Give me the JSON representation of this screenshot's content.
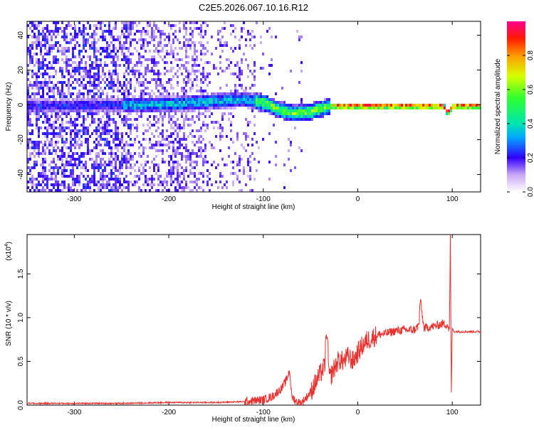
{
  "title": "C2E5.2026.067.10.16.R12",
  "chart_data": [
    {
      "type": "heatmap",
      "xlabel": "Height of straight line (km)",
      "ylabel": "Frequency (Hz)",
      "xlim": [
        -350,
        130
      ],
      "ylim": [
        -50,
        48
      ],
      "xticks": [
        -300,
        -200,
        -100,
        0,
        100
      ],
      "xtick_labels": [
        "-300",
        "-200",
        "-100",
        "0",
        "100"
      ],
      "yticks": [
        -40,
        -20,
        0,
        20,
        40
      ],
      "ytick_labels": [
        "-40",
        "-20",
        "0",
        "20",
        "40"
      ],
      "colorbar": {
        "label": "Normalized spectral amplitude",
        "range": [
          0,
          1
        ],
        "ticks": [
          0.0,
          0.2,
          0.4,
          0.6,
          0.8
        ],
        "tick_labels": [
          "0.0",
          "0.2",
          "0.4",
          "0.6",
          "0.8"
        ]
      },
      "ridge": [
        {
          "x": -350,
          "y": 0
        },
        {
          "x": -200,
          "y": 1
        },
        {
          "x": -150,
          "y": 3
        },
        {
          "x": -120,
          "y": 4
        },
        {
          "x": -100,
          "y": 2
        },
        {
          "x": -85,
          "y": -2
        },
        {
          "x": -70,
          "y": -4
        },
        {
          "x": -50,
          "y": -3
        },
        {
          "x": -30,
          "y": 0
        },
        {
          "x": 0,
          "y": 0
        },
        {
          "x": 90,
          "y": 0
        },
        {
          "x": 94,
          "y": -4
        },
        {
          "x": 100,
          "y": 0
        },
        {
          "x": 130,
          "y": 0
        }
      ]
    },
    {
      "type": "line",
      "xlabel": "Height of straight line (km)",
      "ylabel": "SNR (10 * v/v)",
      "yscale_label": "(x10",
      "yscale_exp": "4",
      "xlim": [
        -350,
        130
      ],
      "ylim": [
        0,
        1.95
      ],
      "xticks": [
        -300,
        -200,
        -100,
        0,
        100
      ],
      "xtick_labels": [
        "-300",
        "-200",
        "-100",
        "0",
        "100"
      ],
      "yticks": [
        0,
        0.5,
        1.0,
        1.5
      ],
      "ytick_labels": [
        "0.0",
        "0.5",
        "1.0",
        "1.5"
      ],
      "color": "#e8322f",
      "series": [
        {
          "x": [
            -350,
            -300,
            -250,
            -200,
            -150,
            -120,
            -100,
            -90,
            -80,
            -75,
            -72,
            -70,
            -65,
            -60,
            -55,
            -50,
            -45,
            -40,
            -35,
            -33,
            -30,
            -25,
            -20,
            -15,
            -10,
            -5,
            0,
            5,
            10,
            20,
            30,
            40,
            50,
            60,
            65,
            66,
            70,
            80,
            90,
            95,
            97,
            98,
            99,
            100,
            102,
            110,
            120,
            130
          ],
          "y": [
            0.02,
            0.02,
            0.02,
            0.03,
            0.03,
            0.04,
            0.06,
            0.1,
            0.2,
            0.3,
            0.4,
            0.1,
            0.04,
            0.02,
            0.08,
            0.15,
            0.25,
            0.35,
            0.45,
            0.88,
            0.3,
            0.42,
            0.52,
            0.5,
            0.56,
            0.5,
            0.6,
            0.68,
            0.74,
            0.8,
            0.82,
            0.85,
            0.86,
            0.86,
            0.92,
            1.22,
            0.88,
            0.9,
            0.93,
            0.92,
            0.85,
            1.95,
            0.12,
            0.88,
            0.84,
            0.84,
            0.84,
            0.84
          ]
        }
      ]
    }
  ]
}
